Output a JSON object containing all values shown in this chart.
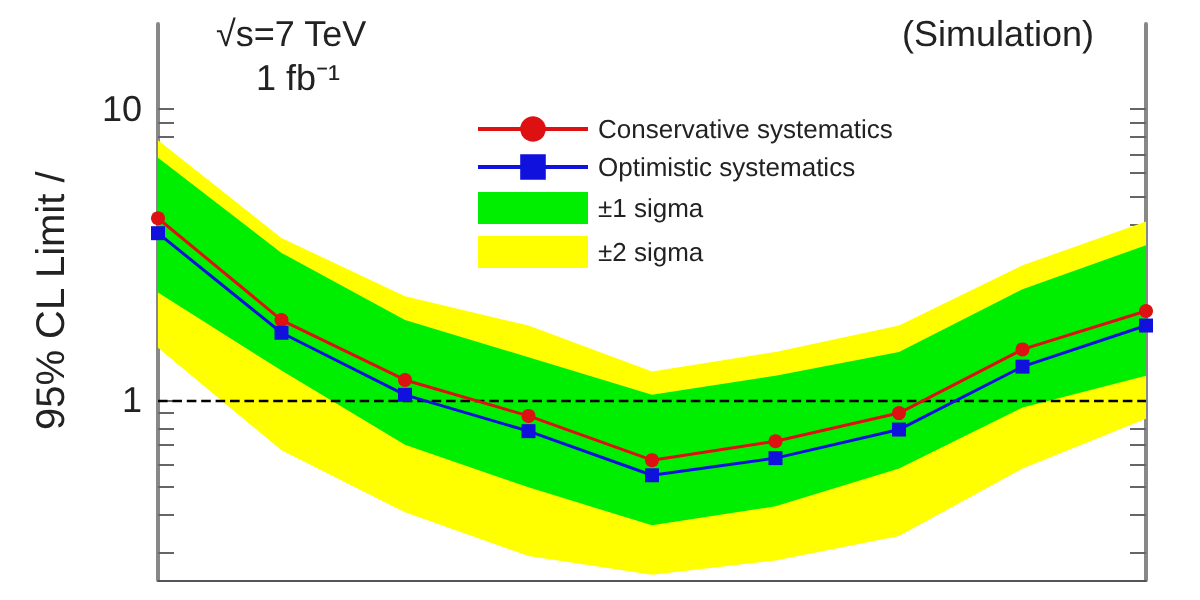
{
  "chart_data": {
    "type": "line",
    "ylabel": "95% CL Limit /",
    "annotations": [
      "√s=7 TeV",
      "1 fb⁻¹",
      "(Simulation)"
    ],
    "categories": [
      null,
      null,
      null,
      null,
      null,
      null,
      null,
      null,
      null
    ],
    "series": [
      {
        "name": "Conservative systematics",
        "color": "#dd1111",
        "marker": "circle",
        "values": [
          4.21,
          1.88,
          1.17,
          0.88,
          0.62,
          0.72,
          0.9,
          1.49,
          2.02
        ]
      },
      {
        "name": "Optimistic systematics",
        "color": "#1111dd",
        "marker": "square",
        "values": [
          3.74,
          1.7,
          1.04,
          0.78,
          0.55,
          0.63,
          0.79,
          1.3,
          1.8
        ]
      },
      {
        "name": "±1 sigma",
        "color": "#00ee00",
        "values": [
          null,
          null,
          null,
          null,
          null,
          null,
          null,
          null,
          null
        ],
        "upper": [
          6.8,
          3.2,
          1.88,
          1.4,
          1.04,
          1.21,
          1.46,
          2.4,
          3.4
        ],
        "lower": [
          2.34,
          1.26,
          0.7,
          0.5,
          0.37,
          0.43,
          0.58,
          0.94,
          1.21
        ]
      },
      {
        "name": "±2 sigma",
        "color": "#ffff00",
        "values": [
          null,
          null,
          null,
          null,
          null,
          null,
          null,
          null,
          null
        ],
        "upper": [
          7.8,
          3.6,
          2.27,
          1.8,
          1.25,
          1.46,
          1.8,
          2.9,
          4.1
        ],
        "lower": [
          1.51,
          0.67,
          0.41,
          0.29,
          0.25,
          0.28,
          0.34,
          0.58,
          0.86
        ]
      }
    ],
    "log": "y",
    "ylim": [
      0.24,
      19.6
    ],
    "yticks": [
      {
        "value": 0.3,
        "label": null
      },
      {
        "value": 0.4,
        "label": null
      },
      {
        "value": 0.5,
        "label": null
      },
      {
        "value": 0.6,
        "label": null
      },
      {
        "value": 0.7,
        "label": null
      },
      {
        "value": 0.8,
        "label": null
      },
      {
        "value": 0.9,
        "label": null
      },
      1,
      {
        "value": 2,
        "label": null
      },
      {
        "value": 3,
        "label": null
      },
      {
        "value": 4,
        "label": null
      },
      {
        "value": 5,
        "label": null
      },
      {
        "value": 6,
        "label": null
      },
      {
        "value": 7,
        "label": null
      },
      {
        "value": 8,
        "label": null
      },
      {
        "value": 9,
        "label": null
      },
      10
    ],
    "tick_labels": "y",
    "grid": false,
    "legend": "top",
    "ref_lines": [
      {
        "axis": "y",
        "value": 1,
        "color": "#000000",
        "line_style": "dashed"
      }
    ]
  }
}
